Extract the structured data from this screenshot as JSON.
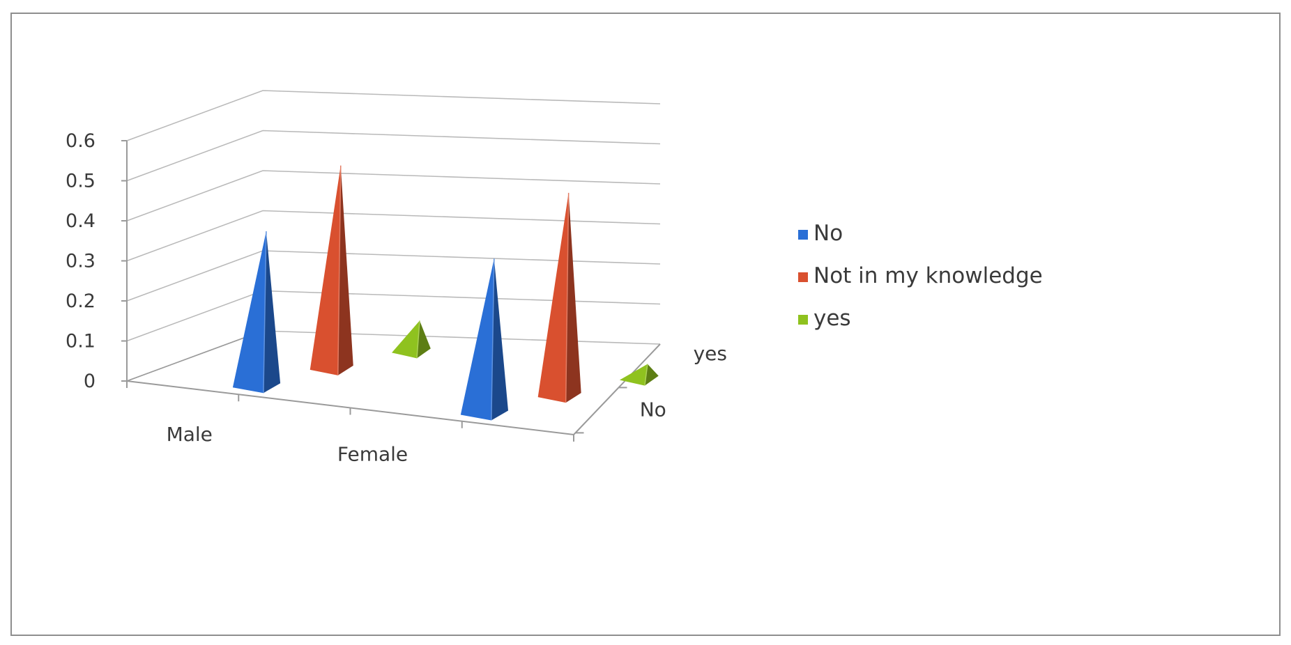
{
  "chart_data": {
    "type": "bar",
    "style": "3d-pyramid",
    "title": "",
    "categories": [
      "Male",
      "Female"
    ],
    "depth_categories": [
      "No",
      "yes"
    ],
    "series": [
      {
        "name": "No",
        "color": "#2a6fd6",
        "values": [
          0.39,
          0.39
        ]
      },
      {
        "name": "Not in my knowledge",
        "color": "#d9502f",
        "values": [
          0.51,
          0.51
        ]
      },
      {
        "name": "yes",
        "color": "#8fc21f",
        "values": [
          0.08,
          0.04
        ]
      }
    ],
    "ylim": [
      0,
      0.6
    ],
    "yticks": [
      "0",
      "0.1",
      "0.2",
      "0.3",
      "0.4",
      "0.5",
      "0.6"
    ],
    "grid": true,
    "legend_position": "right"
  }
}
